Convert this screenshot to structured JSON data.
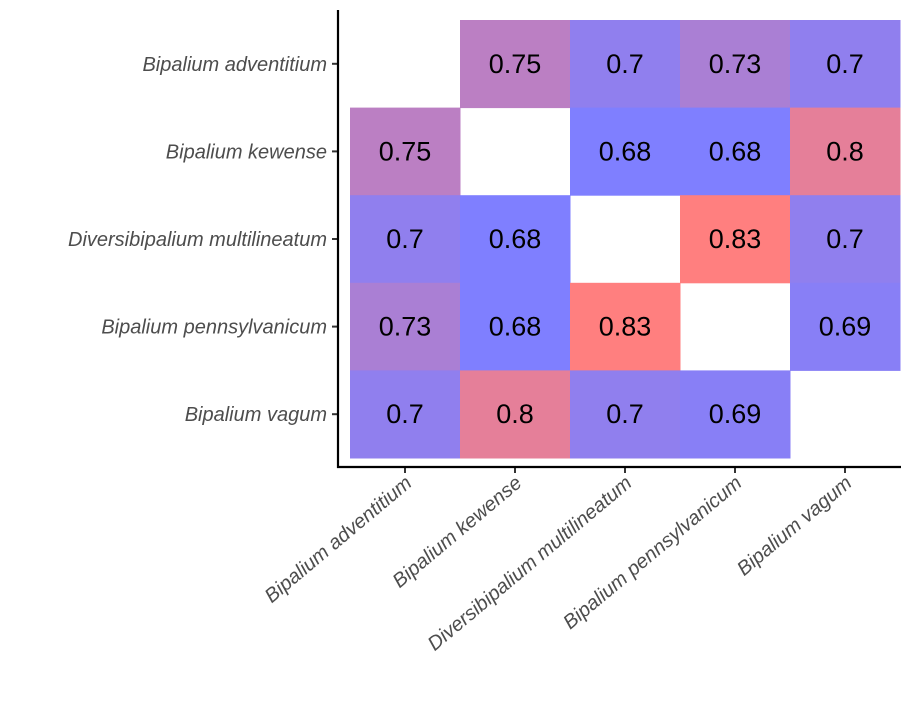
{
  "chart_data": {
    "type": "heatmap",
    "rows": [
      "Bipalium adventitium",
      "Bipalium kewense",
      "Diversibipalium multilineatum",
      "Bipalium pennsylvanicum",
      "Bipalium vagum"
    ],
    "columns": [
      "Bipalium adventitium",
      "Bipalium kewense",
      "Diversibipalium multilineatum",
      "Bipalium pennsylvanicum",
      "Bipalium vagum"
    ],
    "values": [
      [
        null,
        0.75,
        0.7,
        0.73,
        0.7
      ],
      [
        0.75,
        null,
        0.68,
        0.68,
        0.8
      ],
      [
        0.7,
        0.68,
        null,
        0.83,
        0.7
      ],
      [
        0.73,
        0.68,
        0.83,
        null,
        0.69
      ],
      [
        0.7,
        0.8,
        0.7,
        0.69,
        null
      ]
    ],
    "labels": [
      [
        "",
        "0.75",
        "0.7",
        "0.73",
        "0.7"
      ],
      [
        "0.75",
        "",
        "0.68",
        "0.68",
        "0.8"
      ],
      [
        "0.7",
        "0.68",
        "",
        "0.83",
        "0.7"
      ],
      [
        "0.73",
        "0.68",
        "0.83",
        "",
        "0.69"
      ],
      [
        "0.7",
        "0.8",
        "0.7",
        "0.69",
        ""
      ]
    ],
    "color_scale": {
      "low_color": "#7f7fff",
      "high_color": "#ff7f7f",
      "min": 0.68,
      "max": 0.83
    },
    "grid": false,
    "legend": "none",
    "title": "",
    "xlabel": "",
    "ylabel": ""
  }
}
